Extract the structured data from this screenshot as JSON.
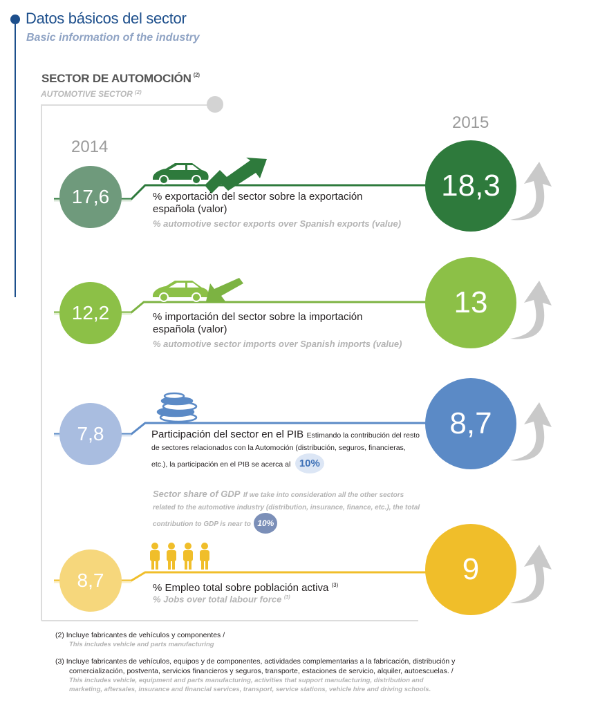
{
  "header": {
    "title": "Datos básicos del sector",
    "subtitle": "Basic information of the industry"
  },
  "section": {
    "title": "SECTOR DE AUTOMOCIÓN",
    "title_note": "(2)",
    "subtitle": "AUTOMOTIVE SECTOR",
    "subtitle_note": "(2)"
  },
  "years": {
    "left": "2014",
    "right": "2015"
  },
  "rows": [
    {
      "value_2014": "17,6",
      "value_2015": "18,3",
      "label_es": "% exportación del sector sobre la exportación española (valor)",
      "label_en": "% automotive sector exports over Spanish exports (value)",
      "color_small": "#6f9a7c",
      "color_large": "#2e7a3c",
      "line_color": "#2e7a3c",
      "icon": "car-arrow-up-icon"
    },
    {
      "value_2014": "12,2",
      "value_2015": "13",
      "label_es": "% importación del sector sobre la importación española (valor)",
      "label_en": "% automotive sector imports over Spanish imports (value)",
      "color_small": "#8cc047",
      "color_large": "#8cc047",
      "line_color": "#7cb342",
      "icon": "car-arrow-down-icon"
    },
    {
      "value_2014": "7,8",
      "value_2015": "8,7",
      "label_es_main": "Participación del sector en el PIB",
      "label_es_detail": "Estimando la contribución del resto de sectores relacionados con la Automoción (distribución, seguros, financieras, etc.), la participación en el PIB se acerca al",
      "highlight_es": "10%",
      "label_en_main": "Sector share of GDP",
      "label_en_detail": "If we take into consideration all the other sectors related to the automotive industry (distribution, insurance, finance, etc.), the total contribution to GDP is near to",
      "highlight_en": "10%",
      "color_small": "#a9bde0",
      "color_large": "#5b8ac6",
      "line_color": "#5b8ac6",
      "icon": "coins-icon"
    },
    {
      "value_2014": "8,7",
      "value_2015": "9",
      "label_es": "% Empleo total sobre población activa",
      "label_es_note": "(3)",
      "label_en": "% Jobs over total labour force",
      "label_en_note": "(3)",
      "color_small": "#f6d77c",
      "color_large": "#f0be2a",
      "line_color": "#f0be2a",
      "icon": "people-icon"
    }
  ],
  "footnotes": [
    {
      "num": "(2)",
      "es": "Incluye fabricantes de vehículos y componentes /",
      "en": "This includes vehicle and parts manufacturing"
    },
    {
      "num": "(3)",
      "es_1": "Incluye fabricantes de vehículos, equipos y de componentes, actividades complementarias a la fabricación, distribución y",
      "es_2": "comercialización, postventa, servicios financieros y seguros, transporte, estaciones de servicio, alquiler, autoescuelas. /",
      "en_1": "This includes vehicle, equipment and parts manufacturing, activities that support manufacturing, distribution and",
      "en_2": "marketing, aftersales, insurance and financial services, transport, service stations, vehicle hire and driving schools."
    }
  ],
  "colors": {
    "brand_blue": "#1d4f8c",
    "subtitle_blue": "#8fa3c4",
    "arrow_gray": "#c9c9c9"
  }
}
